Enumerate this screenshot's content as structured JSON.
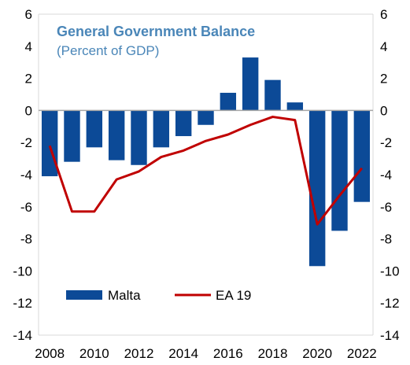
{
  "chart_data": {
    "type": "bar",
    "title": "General Government Balance",
    "subtitle": "(Percent of GDP)",
    "x": [
      2008,
      2009,
      2010,
      2011,
      2012,
      2013,
      2014,
      2015,
      2016,
      2017,
      2018,
      2019,
      2020,
      2021,
      2022
    ],
    "x_ticks": [
      "2008",
      "2010",
      "2012",
      "2014",
      "2016",
      "2018",
      "2020",
      "2022"
    ],
    "y_ticks": [
      "6",
      "4",
      "2",
      "0",
      "-2",
      "-4",
      "-6",
      "-8",
      "-10",
      "-12",
      "-14"
    ],
    "ylim": [
      -14,
      6
    ],
    "series": [
      {
        "name": "Malta",
        "type": "bar",
        "color": "#0c4a97",
        "values": [
          -4.1,
          -3.2,
          -2.3,
          -3.1,
          -3.4,
          -2.3,
          -1.6,
          -0.9,
          1.1,
          3.3,
          1.9,
          0.5,
          -9.7,
          -7.5,
          -5.7
        ]
      },
      {
        "name": "EA 19",
        "type": "line",
        "color": "#c00000",
        "values": [
          -2.2,
          -6.3,
          -6.3,
          -4.3,
          -3.8,
          -2.9,
          -2.5,
          -1.9,
          -1.5,
          -0.9,
          -0.4,
          -0.6,
          -7.1,
          -5.3,
          -3.6
        ]
      }
    ],
    "grid": false,
    "legend_position": "bottom-left",
    "colors": {
      "title": "#4a86b8",
      "axis": "#a6a6a6"
    }
  }
}
